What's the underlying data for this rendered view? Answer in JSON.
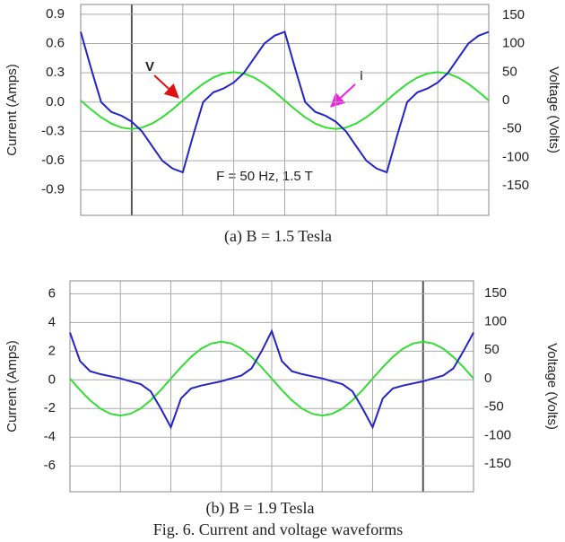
{
  "chart_data": [
    {
      "type": "line",
      "caption": "(a)  B = 1.5 Tesla",
      "ylabel": "Current (Amps)",
      "y2label": "Voltage (Volts)",
      "annotations": [
        "F = 50 Hz, 1.5 T",
        "V",
        "I"
      ],
      "ylim": [
        -1.16,
        1.0
      ],
      "yticks": [
        0.9,
        0.6,
        0.3,
        {
          "value": 0,
          "label": "0.0"
        },
        -0.3,
        -0.6,
        -0.9
      ],
      "y2lim": [
        -202,
        169
      ],
      "y2ticks": [
        150,
        100,
        50,
        0,
        -50,
        -100,
        -150
      ],
      "grid": true,
      "series": [
        {
          "color": "#2424c8",
          "values": [
            0.72,
            0.35,
            0.0,
            -0.1,
            -0.14,
            -0.2,
            -0.3,
            -0.45,
            -0.6,
            -0.68,
            -0.72,
            -0.35,
            0.0,
            0.1,
            0.14,
            0.2,
            0.3,
            0.45,
            0.6,
            0.68,
            0.72,
            0.35,
            0.0,
            -0.1,
            -0.14,
            -0.2,
            -0.3,
            -0.45,
            -0.6,
            -0.68,
            -0.72,
            -0.35,
            0.0,
            0.1,
            0.14,
            0.2,
            0.3,
            0.45,
            0.6,
            0.68,
            0.72
          ]
        },
        {
          "color": "#33dd33",
          "axis": "y2",
          "values": [
            0,
            -15.5,
            -29.4,
            -40.5,
            -47.6,
            -50,
            -47.6,
            -40.5,
            -29.4,
            -15.5,
            0,
            15.5,
            29.4,
            40.5,
            47.6,
            50,
            47.6,
            40.5,
            29.4,
            15.5,
            0,
            -15.5,
            -29.4,
            -40.5,
            -47.6,
            -50,
            -47.6,
            -40.5,
            -29.4,
            -15.5,
            0,
            15.5,
            29.4,
            40.5,
            47.6,
            50,
            47.6,
            40.5,
            29.4,
            15.5,
            0
          ]
        }
      ]
    },
    {
      "type": "line",
      "caption": "(b) B = 1.9 Tesla",
      "ylabel": "Current (Amps)",
      "y2label": "Voltage (Volts)",
      "ylim": [
        -7.8,
        6.9
      ],
      "yticks": [
        6,
        4,
        2,
        0,
        -2,
        -4,
        -6
      ],
      "y2lim": [
        -199,
        172
      ],
      "y2ticks": [
        150,
        100,
        50,
        0,
        -50,
        -100,
        -150
      ],
      "grid": true,
      "series": [
        {
          "color": "#2424c8",
          "values": [
            3.3,
            1.3,
            0.6,
            0.4,
            0.25,
            0.1,
            -0.1,
            -0.3,
            -0.8,
            -2.0,
            -3.3,
            -1.3,
            -0.6,
            -0.4,
            -0.25,
            -0.1,
            0.1,
            0.3,
            0.8,
            2.0,
            3.4,
            1.3,
            0.6,
            0.4,
            0.25,
            0.1,
            -0.1,
            -0.3,
            -0.8,
            -2.0,
            -3.3,
            -1.3,
            -0.6,
            -0.4,
            -0.25,
            -0.1,
            0.1,
            0.3,
            0.8,
            2.0,
            3.3
          ]
        },
        {
          "color": "#33dd33",
          "axis": "y2",
          "values": [
            0,
            -20.1,
            -38.2,
            -52.6,
            -61.8,
            -65,
            -61.8,
            -52.6,
            -38.2,
            -20.1,
            0,
            20.1,
            38.2,
            52.6,
            61.8,
            65,
            61.8,
            52.6,
            38.2,
            20.1,
            0,
            -20.1,
            -38.2,
            -52.6,
            -61.8,
            -65,
            -61.8,
            -52.6,
            -38.2,
            -20.1,
            0,
            20.1,
            38.2,
            52.6,
            61.8,
            65,
            61.8,
            52.6,
            38.2,
            20.1,
            0
          ]
        }
      ]
    }
  ],
  "caption": "Fig. 6. Current and voltage waveforms"
}
